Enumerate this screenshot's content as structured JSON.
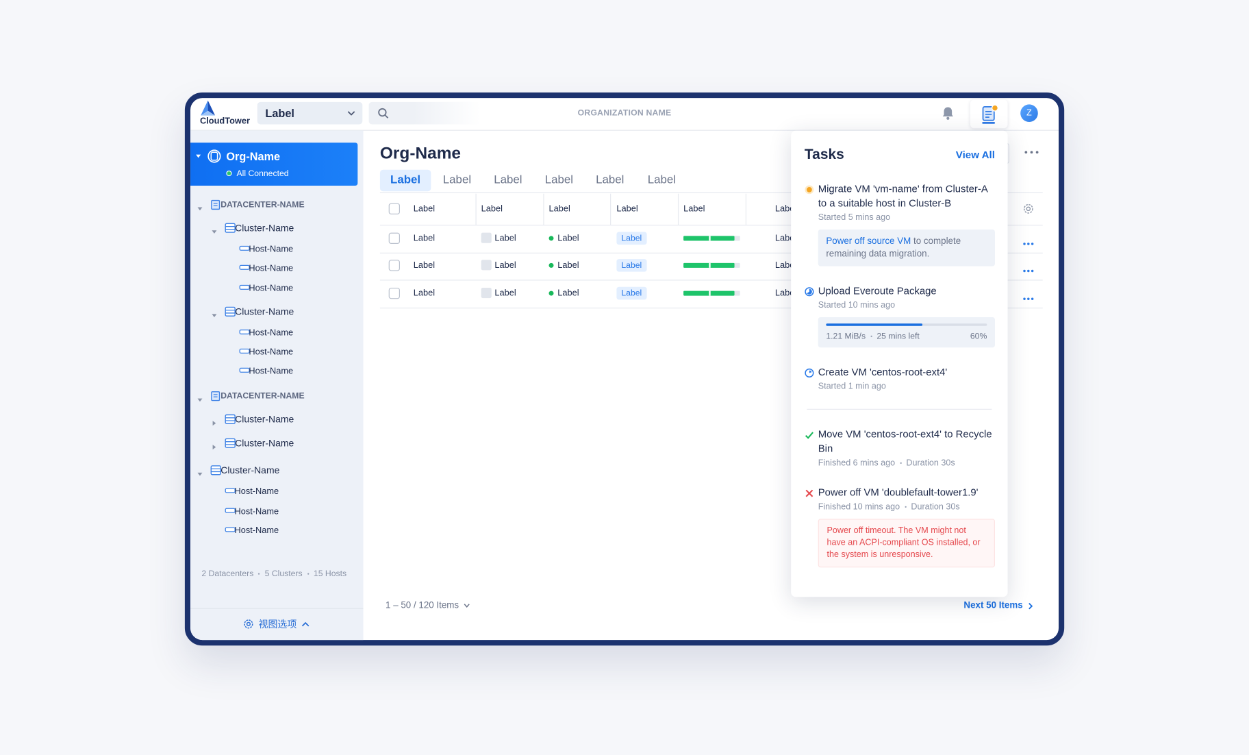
{
  "header": {
    "logo": "CloudTower",
    "selector": "Label",
    "org_name": "ORGANIZATION NAME",
    "avatar": "Z"
  },
  "sidebar": {
    "org": {
      "name": "Org-Name",
      "status": "All Connected"
    },
    "datacenters": [
      {
        "name": "DATACENTER-NAME",
        "clusters": [
          {
            "name": "Cluster-Name",
            "hosts": [
              "Host-Name",
              "Host-Name",
              "Host-Name"
            ]
          },
          {
            "name": "Cluster-Name",
            "hosts": [
              "Host-Name",
              "Host-Name",
              "Host-Name"
            ]
          }
        ]
      },
      {
        "name": "DATACENTER-NAME",
        "clusters": [
          {
            "name": "Cluster-Name",
            "hosts": []
          },
          {
            "name": "Cluster-Name",
            "hosts": []
          }
        ]
      }
    ],
    "clusters": [
      {
        "name": "Cluster-Name",
        "hosts": [
          "Host-Name",
          "Host-Name",
          "Host-Name"
        ]
      }
    ],
    "summary": [
      "2 Datacenters",
      "5 Clusters",
      "15 Hosts"
    ],
    "view_options": "视图选项"
  },
  "main": {
    "title": "Org-Name",
    "tabs": [
      "Label",
      "Label",
      "Label",
      "Label",
      "Label",
      "Label"
    ],
    "table": {
      "columns": [
        "Label",
        "Label",
        "Label",
        "Label",
        "Label",
        "Label"
      ],
      "rows": [
        {
          "cells": [
            "Label",
            "Label",
            "Label",
            "Label",
            "Label"
          ],
          "usage": 90
        },
        {
          "cells": [
            "Label",
            "Label",
            "Label",
            "Label",
            "Label"
          ],
          "usage": 90
        },
        {
          "cells": [
            "Label",
            "Label",
            "Label",
            "Label",
            "Label"
          ],
          "usage": 90
        }
      ]
    },
    "pagination": "1 – 50 / 120 Items",
    "next": "Next 50 Items"
  },
  "tasks": {
    "title": "Tasks",
    "view_all": "View All",
    "items": [
      {
        "status": "pending",
        "title": "Migrate VM 'vm-name' from Cluster-A to a suitable host in Cluster-B",
        "meta": [
          "Started 5 mins ago"
        ],
        "note": {
          "link": "Power off source VM",
          "text": "to complete remaining data migration."
        }
      },
      {
        "status": "running",
        "title": "Upload Everoute Package",
        "meta": [
          "Started 10 mins ago"
        ],
        "progress": {
          "speed": "1.21 MiB/s",
          "remaining": "25 mins left",
          "percent": 60,
          "percent_label": "60%"
        }
      },
      {
        "status": "waiting",
        "title": "Create VM 'centos-root-ext4'",
        "meta": [
          "Started 1 min ago"
        ]
      },
      {
        "status": "success",
        "title": "Move VM 'centos-root-ext4' to Recycle Bin",
        "meta": [
          "Finished 6 mins ago",
          "Duration 30s"
        ]
      },
      {
        "status": "failed",
        "title": "Power off VM 'doublefault-tower1.9'",
        "meta": [
          "Finished 10 mins ago",
          "Duration 30s"
        ],
        "error": "Power off timeout. The VM might not have an ACPI-compliant OS installed, or the system is unresponsive."
      }
    ]
  }
}
